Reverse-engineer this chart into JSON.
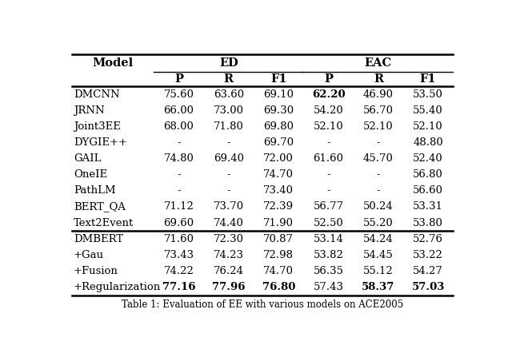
{
  "header_top": [
    "",
    "ED",
    "",
    "",
    "EAC",
    "",
    ""
  ],
  "header_sub": [
    "Model",
    "P",
    "R",
    "F1",
    "P",
    "R",
    "F1"
  ],
  "rows": [
    [
      "DMCNN",
      "75.60",
      "63.60",
      "69.10",
      "bold:62.20",
      "46.90",
      "53.50"
    ],
    [
      "JRNN",
      "66.00",
      "73.00",
      "69.30",
      "54.20",
      "56.70",
      "55.40"
    ],
    [
      "Joint3EE",
      "68.00",
      "71.80",
      "69.80",
      "52.10",
      "52.10",
      "52.10"
    ],
    [
      "DYGIE++",
      "-",
      "-",
      "69.70",
      "-",
      "-",
      "48.80"
    ],
    [
      "GAIL",
      "74.80",
      "69.40",
      "72.00",
      "61.60",
      "45.70",
      "52.40"
    ],
    [
      "OneIE",
      "-",
      "-",
      "74.70",
      "-",
      "-",
      "56.80"
    ],
    [
      "PathLM",
      "-",
      "-",
      "73.40",
      "-",
      "-",
      "56.60"
    ],
    [
      "BERT_QA",
      "71.12",
      "73.70",
      "72.39",
      "56.77",
      "50.24",
      "53.31"
    ],
    [
      "Text2Event",
      "69.60",
      "74.40",
      "71.90",
      "52.50",
      "55.20",
      "53.80"
    ],
    [
      "DMBERT",
      "71.60",
      "72.30",
      "70.87",
      "53.14",
      "54.24",
      "52.76"
    ],
    [
      "+Gau",
      "73.43",
      "74.23",
      "72.98",
      "53.82",
      "54.45",
      "53.22"
    ],
    [
      "+Fusion",
      "74.22",
      "76.24",
      "74.70",
      "56.35",
      "55.12",
      "54.27"
    ],
    [
      "+Regularization",
      "bold:77.16",
      "bold:77.96",
      "bold:76.80",
      "57.43",
      "bold:58.37",
      "bold:57.03"
    ]
  ],
  "caption": "Table 1: Evaluation of EE with various models on ACE2005",
  "background": "#ffffff",
  "fs_header": 10.5,
  "fs_data": 9.5,
  "fs_caption": 8.5
}
